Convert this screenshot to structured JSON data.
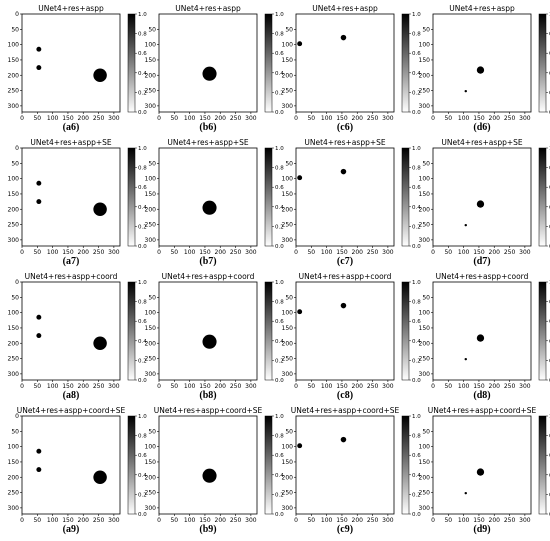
{
  "figure": {
    "columns": [
      "a",
      "b",
      "c",
      "d"
    ],
    "rows": [
      {
        "title": "UNet4+res+aspp",
        "captions": [
          "a6",
          "b6",
          "c6",
          "d6"
        ]
      },
      {
        "title": "UNet4+res+aspp+SE",
        "captions": [
          "a7",
          "b7",
          "c7",
          "d7"
        ]
      },
      {
        "title": "UNet4+res+aspp+coord",
        "captions": [
          "a8",
          "b8",
          "c8",
          "d8"
        ]
      },
      {
        "title": "UNet4+res+aspp+coord+SE",
        "captions": [
          "a9",
          "b9",
          "c9",
          "d9"
        ]
      }
    ],
    "axis": {
      "x_ticks": [
        "0",
        "50",
        "100",
        "150",
        "200",
        "250",
        "300"
      ],
      "y_ticks": [
        "50",
        "100",
        "150",
        "200",
        "250",
        "300"
      ],
      "y_ticks_first_col": [
        "0",
        "50",
        "100",
        "150",
        "200",
        "250",
        "300"
      ],
      "range": [
        0,
        320
      ]
    },
    "colorbar": {
      "ticks": [
        "0.0",
        "0.2",
        "0.4",
        "0.6",
        "0.8",
        "1.0"
      ],
      "colormap": "gray"
    },
    "colors": {
      "blob": "#000000",
      "background": "#ffffff"
    },
    "panels": {
      "a": [
        {
          "cx": 55,
          "cy": 115,
          "r": 8
        },
        {
          "cx": 55,
          "cy": 175,
          "r": 8
        },
        {
          "cx": 255,
          "cy": 200,
          "r": 22
        }
      ],
      "b": [
        {
          "cx": 165,
          "cy": 195,
          "r": 23
        }
      ],
      "c": [
        {
          "cx": 12,
          "cy": 97,
          "r": 8
        },
        {
          "cx": 155,
          "cy": 77,
          "r": 9
        }
      ],
      "d": [
        {
          "cx": 155,
          "cy": 183,
          "r": 12
        },
        {
          "cx": 107,
          "cy": 252,
          "r": 4
        }
      ]
    }
  }
}
